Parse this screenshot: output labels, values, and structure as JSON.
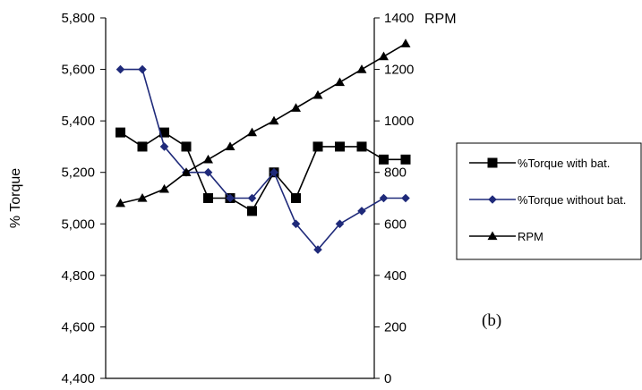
{
  "chart_data": {
    "type": "line",
    "title": "",
    "panel_label": "(b)",
    "y_left": {
      "label": "% Torque",
      "range": [
        4400,
        5800
      ],
      "ticks": [
        "4,400",
        "4,600",
        "4,800",
        "5,000",
        "5,200",
        "5,400",
        "5,600",
        "5,800"
      ]
    },
    "y_right": {
      "label": "RPM",
      "range": [
        0,
        1400
      ],
      "ticks": [
        "0",
        "200",
        "400",
        "600",
        "800",
        "1000",
        "1200",
        "1400"
      ]
    },
    "x": [
      1,
      2,
      3,
      4,
      5,
      6,
      7,
      8,
      9,
      10,
      11,
      12,
      13,
      14
    ],
    "grid": false,
    "legend_position": "right",
    "series": [
      {
        "name": "%Torque with bat.",
        "axis": "left",
        "marker": "square",
        "color": "#000000",
        "values": [
          5355,
          5300,
          5355,
          5300,
          5100,
          5100,
          5050,
          5200,
          5100,
          5300,
          5300,
          5300,
          5250,
          5250
        ]
      },
      {
        "name": "%Torque without bat.",
        "axis": "left",
        "marker": "diamond",
        "color": "#1f2a7a",
        "values": [
          5600,
          5600,
          5300,
          5200,
          5200,
          5100,
          5100,
          5200,
          5000,
          4900,
          5000,
          5050,
          5100,
          5100
        ]
      },
      {
        "name": "RPM",
        "axis": "right",
        "marker": "triangle",
        "color": "#000000",
        "values": [
          680,
          700,
          735,
          800,
          850,
          900,
          955,
          1000,
          1050,
          1100,
          1150,
          1200,
          1250,
          1300
        ]
      }
    ]
  }
}
